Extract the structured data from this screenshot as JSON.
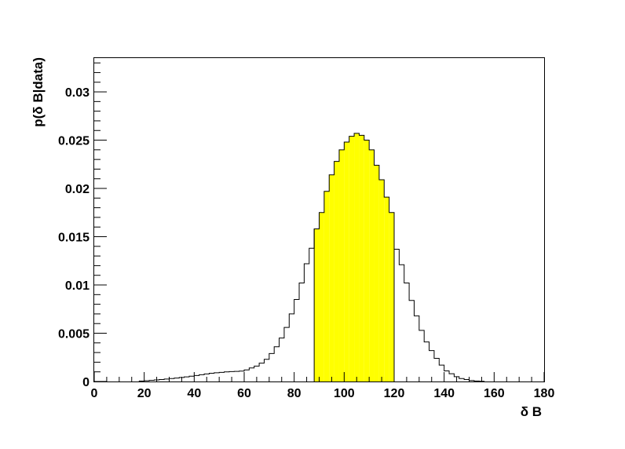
{
  "chart_data": {
    "type": "histogram",
    "xlabel": "δ B",
    "ylabel": "p(δ B|data)",
    "xlim": [
      0,
      180
    ],
    "ylim": [
      0,
      0.0335
    ],
    "x_ticks": [
      0,
      20,
      40,
      60,
      80,
      100,
      120,
      140,
      160,
      180
    ],
    "y_ticks": [
      0,
      0.005,
      0.01,
      0.015,
      0.02,
      0.025,
      0.03
    ],
    "y_tick_labels": [
      "0",
      "0.005",
      "0.01",
      "0.015",
      "0.02",
      "0.025",
      "0.03"
    ],
    "bin_width": 2,
    "grid": false,
    "legend": "none",
    "fill_color": "#ffff00",
    "line_color": "#000000",
    "highlight_range": [
      88,
      120
    ],
    "bins": [
      {
        "x0": 18,
        "y": 5e-05
      },
      {
        "x0": 20,
        "y": 8e-05
      },
      {
        "x0": 22,
        "y": 0.00012
      },
      {
        "x0": 24,
        "y": 0.00016
      },
      {
        "x0": 26,
        "y": 0.0002
      },
      {
        "x0": 28,
        "y": 0.00025
      },
      {
        "x0": 30,
        "y": 0.0003
      },
      {
        "x0": 32,
        "y": 0.00036
      },
      {
        "x0": 34,
        "y": 0.00042
      },
      {
        "x0": 36,
        "y": 0.00048
      },
      {
        "x0": 38,
        "y": 0.00055
      },
      {
        "x0": 40,
        "y": 0.00062
      },
      {
        "x0": 42,
        "y": 0.0007
      },
      {
        "x0": 44,
        "y": 0.00078
      },
      {
        "x0": 46,
        "y": 0.00085
      },
      {
        "x0": 48,
        "y": 0.0009
      },
      {
        "x0": 50,
        "y": 0.00095
      },
      {
        "x0": 52,
        "y": 0.001
      },
      {
        "x0": 54,
        "y": 0.00103
      },
      {
        "x0": 56,
        "y": 0.00105
      },
      {
        "x0": 58,
        "y": 0.00108
      },
      {
        "x0": 60,
        "y": 0.0012
      },
      {
        "x0": 62,
        "y": 0.0014
      },
      {
        "x0": 64,
        "y": 0.0016
      },
      {
        "x0": 66,
        "y": 0.0019
      },
      {
        "x0": 68,
        "y": 0.0023
      },
      {
        "x0": 70,
        "y": 0.0029
      },
      {
        "x0": 72,
        "y": 0.0036
      },
      {
        "x0": 74,
        "y": 0.0045
      },
      {
        "x0": 76,
        "y": 0.0056
      },
      {
        "x0": 78,
        "y": 0.007
      },
      {
        "x0": 80,
        "y": 0.0085
      },
      {
        "x0": 82,
        "y": 0.0102
      },
      {
        "x0": 84,
        "y": 0.0122
      },
      {
        "x0": 86,
        "y": 0.0138
      },
      {
        "x0": 88,
        "y": 0.0158
      },
      {
        "x0": 90,
        "y": 0.0175
      },
      {
        "x0": 92,
        "y": 0.0197
      },
      {
        "x0": 94,
        "y": 0.0214
      },
      {
        "x0": 96,
        "y": 0.0228
      },
      {
        "x0": 98,
        "y": 0.024
      },
      {
        "x0": 100,
        "y": 0.0248
      },
      {
        "x0": 102,
        "y": 0.0254
      },
      {
        "x0": 104,
        "y": 0.0257
      },
      {
        "x0": 106,
        "y": 0.0255
      },
      {
        "x0": 108,
        "y": 0.025
      },
      {
        "x0": 110,
        "y": 0.024
      },
      {
        "x0": 112,
        "y": 0.0224
      },
      {
        "x0": 114,
        "y": 0.0209
      },
      {
        "x0": 116,
        "y": 0.0191
      },
      {
        "x0": 118,
        "y": 0.0175
      },
      {
        "x0": 120,
        "y": 0.0137
      },
      {
        "x0": 122,
        "y": 0.0121
      },
      {
        "x0": 124,
        "y": 0.0102
      },
      {
        "x0": 126,
        "y": 0.0084
      },
      {
        "x0": 128,
        "y": 0.0068
      },
      {
        "x0": 130,
        "y": 0.0053
      },
      {
        "x0": 132,
        "y": 0.0041
      },
      {
        "x0": 134,
        "y": 0.0032
      },
      {
        "x0": 136,
        "y": 0.0024
      },
      {
        "x0": 138,
        "y": 0.0017
      },
      {
        "x0": 140,
        "y": 0.0011
      },
      {
        "x0": 142,
        "y": 0.0008
      },
      {
        "x0": 144,
        "y": 0.0005
      },
      {
        "x0": 146,
        "y": 0.0003
      },
      {
        "x0": 148,
        "y": 0.0002
      },
      {
        "x0": 150,
        "y": 0.0001
      },
      {
        "x0": 152,
        "y": 5e-05
      },
      {
        "x0": 154,
        "y": 2e-05
      }
    ]
  }
}
